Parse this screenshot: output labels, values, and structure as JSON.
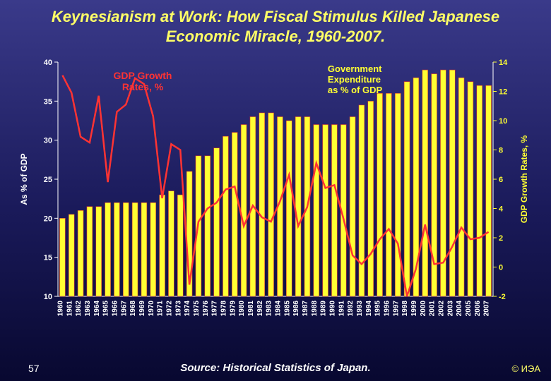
{
  "title": "Keynesianism at Work: How Fiscal Stimulus Killed Japanese Economic Miracle, 1960-2007.",
  "page_number": "57",
  "source": "Source: Historical Statistics of Japan.",
  "copyright": "© ИЭА",
  "chart": {
    "type": "combo-bar-line",
    "background_color": "transparent",
    "label_color_bars": "#ffff33",
    "label_color_line": "#ff3333",
    "axis_label_color": "#ffffff",
    "axis_label_fontsize": 11,
    "tick_fontsize": 11,
    "tick_fontweight": "bold",
    "xcat_fontsize": 10,
    "left_axis": {
      "label": "As % of GDP",
      "min": 10,
      "max": 40,
      "tick_step": 5,
      "color": "#ffffff"
    },
    "right_axis": {
      "label": "GDP Growth Rates, %",
      "min": -2,
      "max": 14,
      "tick_step": 2,
      "color": "#ffff33"
    },
    "categories": [
      "1960",
      "1961",
      "1962",
      "1963",
      "1964",
      "1965",
      "1966",
      "1967",
      "1968",
      "1969",
      "1970",
      "1971",
      "1972",
      "1973",
      "1974",
      "1975",
      "1976",
      "1977",
      "1978",
      "1979",
      "1980",
      "1981",
      "1982",
      "1983",
      "1984",
      "1985",
      "1986",
      "1987",
      "1988",
      "1989",
      "1990",
      "1991",
      "1992",
      "1993",
      "1994",
      "1995",
      "1996",
      "1997",
      "1998",
      "1999",
      "2000",
      "2001",
      "2002",
      "2003",
      "2004",
      "2005",
      "2006",
      "2007"
    ],
    "bar_series": {
      "label": "Government Expenditure as % of GDP",
      "color": "#ffff33",
      "edge_color": "#cc3333",
      "values": [
        20,
        20.5,
        21,
        21.5,
        21.5,
        22,
        22,
        22,
        22,
        22,
        22,
        23,
        23.5,
        23,
        26,
        28,
        28,
        29,
        30.5,
        31,
        32,
        33,
        33.5,
        33.5,
        33,
        32.5,
        33,
        33,
        32,
        32,
        32,
        32,
        33,
        34.5,
        35,
        36,
        36,
        36,
        37.5,
        38,
        39,
        38.5,
        39,
        39,
        38,
        37.5,
        37,
        37
      ]
    },
    "line_series": {
      "label": "GDP Growth Rates, %",
      "color": "#ff3333",
      "width": 2.5,
      "values": [
        13.1,
        11.9,
        8.9,
        8.5,
        11.7,
        5.8,
        10.6,
        11.1,
        12.9,
        12.5,
        10.3,
        4.7,
        8.4,
        8.0,
        -1.2,
        3.1,
        4.0,
        4.4,
        5.3,
        5.5,
        2.8,
        4.2,
        3.4,
        3.1,
        4.5,
        6.3,
        2.8,
        4.1,
        7.1,
        5.4,
        5.6,
        3.3,
        0.8,
        0.2,
        0.9,
        1.9,
        2.6,
        1.6,
        -2.0,
        -0.1,
        2.9,
        0.2,
        0.3,
        1.4,
        2.7,
        1.9,
        2.0,
        2.4
      ]
    },
    "annotation_gdp": "GDP Growth Rates, %",
    "annotation_gov": "Government Expenditure as % of GDP"
  }
}
